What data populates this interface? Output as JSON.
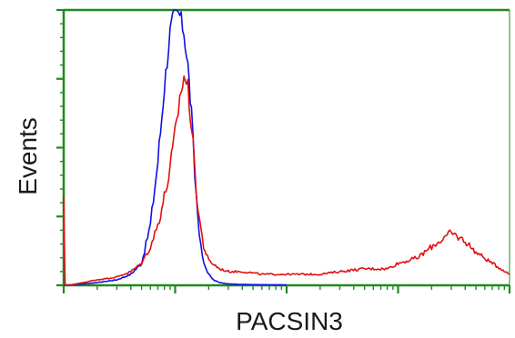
{
  "chart_data": {
    "type": "line",
    "title": "",
    "xlabel": "PACSIN3",
    "ylabel": "Events",
    "xscale": "log",
    "xlim": [
      1,
      10000
    ],
    "ylim": [
      0,
      100
    ],
    "grid": false,
    "legend": "none",
    "frame_color": "#1f8a1f",
    "series": [
      {
        "color": "#1010e0",
        "x": [
          1,
          1.5,
          2,
          3,
          4,
          5,
          6,
          7,
          8,
          9,
          10,
          11,
          12,
          13,
          14,
          15,
          16,
          17,
          18,
          20,
          22,
          25,
          30,
          40,
          60,
          100
        ],
        "y": [
          0,
          0.5,
          1,
          2,
          4,
          8,
          22,
          45,
          72,
          92,
          100,
          98,
          92,
          80,
          62,
          40,
          25,
          14,
          8,
          4,
          2,
          1,
          0.5,
          0.3,
          0.2,
          0.1
        ]
      },
      {
        "color": "#e01010",
        "x": [
          1,
          1.03,
          1.1,
          1.5,
          2,
          3,
          4,
          5,
          6,
          7,
          8,
          9,
          10,
          11,
          12,
          13,
          14,
          15,
          16,
          18,
          20,
          25,
          30,
          40,
          60,
          100,
          200,
          300,
          500,
          800,
          1000,
          1500,
          2000,
          3000,
          4000,
          5000,
          7000,
          10000
        ],
        "y": [
          30,
          0,
          0,
          1,
          2,
          3,
          5,
          8,
          14,
          22,
          32,
          42,
          55,
          68,
          76,
          72,
          58,
          42,
          28,
          14,
          9,
          6,
          5,
          5,
          4,
          4,
          4,
          5,
          6,
          6,
          8,
          10,
          14,
          19,
          16,
          12,
          8,
          4
        ]
      }
    ]
  }
}
